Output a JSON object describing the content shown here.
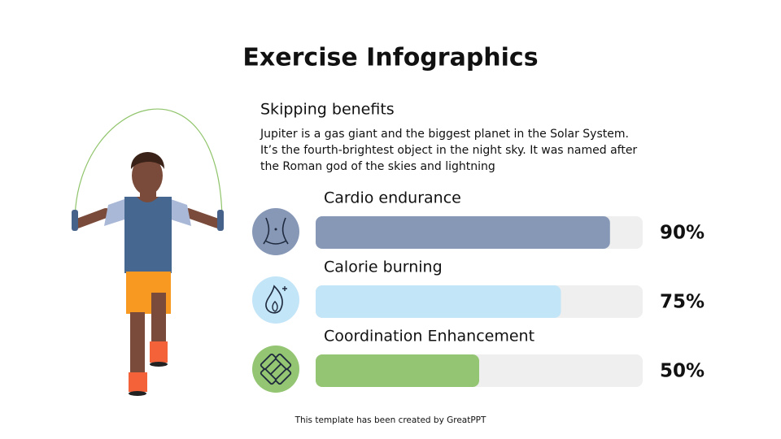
{
  "title": "Exercise Infographics",
  "subtitle": "Skipping benefits",
  "description": [
    "Jupiter is a gas giant and the biggest planet in the Solar System.",
    "It’s the fourth-brightest object in the night sky. It was named after",
    "the Roman god of the skies and lightning"
  ],
  "footer": "This template has been created by GreatPPT",
  "chart_data": {
    "type": "progress",
    "categories": [
      "Cardio endurance",
      "Calorie burning",
      "Coordination Enhancement"
    ],
    "values": [
      90,
      75,
      50
    ],
    "value_labels": [
      "90%",
      "75%",
      "50%"
    ],
    "colors": [
      "#8798b7",
      "#c3e5f8",
      "#93c572"
    ],
    "xlim": [
      0,
      100
    ]
  }
}
